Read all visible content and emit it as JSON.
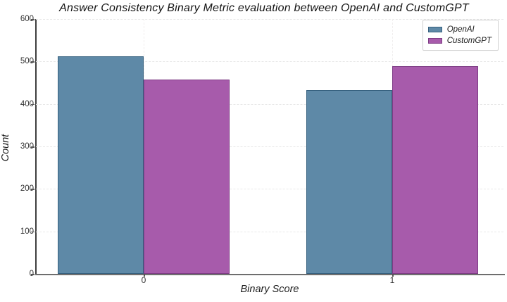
{
  "chart_data": {
    "type": "bar",
    "title": "Answer Consistency Binary Metric evaluation between OpenAI and CustomGPT",
    "xlabel": "Binary Score",
    "ylabel": "Count",
    "categories": [
      "0",
      "1"
    ],
    "series": [
      {
        "name": "OpenAI",
        "values": [
          513,
          432
        ],
        "color": "#5e89a7",
        "edge_color": "#36617f"
      },
      {
        "name": "CustomGPT",
        "values": [
          457,
          489
        ],
        "color": "#a75bab",
        "edge_color": "#7e3c85"
      }
    ],
    "ylim": [
      0,
      600
    ],
    "ytick_step": 100,
    "yticks": [
      0,
      100,
      200,
      300,
      400,
      500,
      600
    ],
    "grid": true,
    "legend_position": "upper right",
    "background_color": "#ffffff"
  }
}
